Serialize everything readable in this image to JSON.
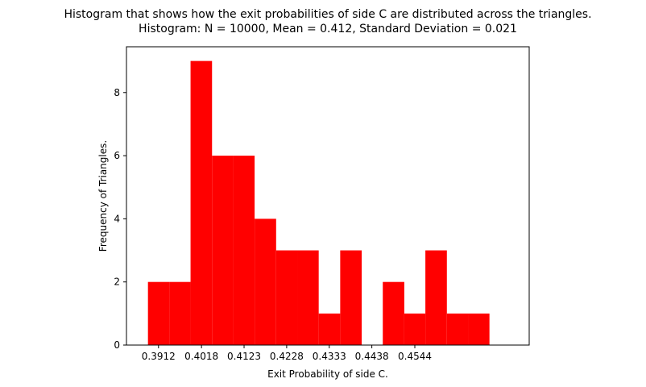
{
  "chart_data": {
    "type": "histogram",
    "title": "Histogram that shows how the exit probabilities of side C are distributed across the triangles.",
    "subtitle": "Histogram: N = 10000, Mean = 0.412, Standard Deviation = 0.021",
    "x_label": "Exit Probability of side C.",
    "y_label": "Frequency of Triangles.",
    "bins": [
      0.3886,
      0.3939,
      0.3991,
      0.4044,
      0.4097,
      0.4149,
      0.4202,
      0.4255,
      0.4307,
      0.436,
      0.4413,
      0.4465,
      0.4518,
      0.457,
      0.4623,
      0.4676,
      0.4728
    ],
    "values": [
      2,
      2,
      9,
      6,
      6,
      4,
      3,
      3,
      1,
      3,
      0,
      2,
      1,
      3,
      1,
      1
    ],
    "color": "#ff0000",
    "xlim": [
      0.3833,
      0.4826
    ],
    "xticks": [
      0.3912,
      0.4018,
      0.4123,
      0.4228,
      0.4333,
      0.4438,
      0.4544
    ],
    "ylim": [
      0,
      9.45
    ],
    "yticks": [
      0,
      2,
      4,
      6,
      8
    ]
  }
}
